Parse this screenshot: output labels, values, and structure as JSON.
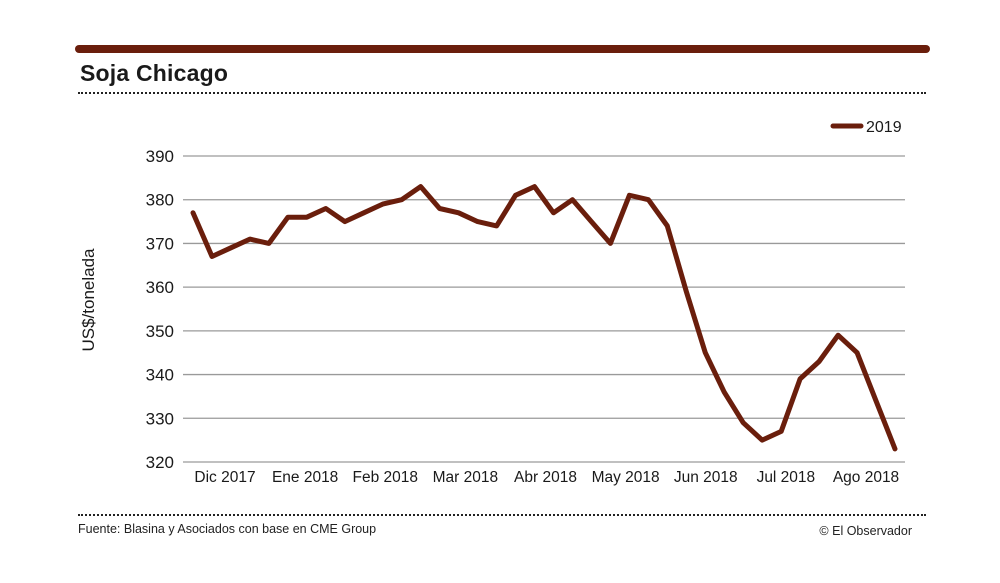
{
  "header": {
    "title": "Soja Chicago"
  },
  "footer": {
    "source": "Fuente: Blasina y Asociados con base en CME Group",
    "credit": "© El Observador"
  },
  "colors": {
    "line": "#6a1e0c",
    "accent_bar": "#6a1e0c",
    "grid": "#9a9a9a"
  },
  "chart_data": {
    "type": "line",
    "title": "Soja Chicago",
    "xlabel": "",
    "ylabel": "US$/tonelada",
    "ylim": [
      320,
      390
    ],
    "yticks": [
      320,
      330,
      340,
      350,
      360,
      370,
      380,
      390
    ],
    "grid": true,
    "legend_position": "top-right",
    "x_tick_labels": [
      "Dic 2017",
      "Ene 2018",
      "Feb 2018",
      "Mar 2018",
      "Abr 2018",
      "May 2018",
      "Jun 2018",
      "Jul 2018",
      "Ago 2018"
    ],
    "series": [
      {
        "name": "2019",
        "values": [
          377,
          367,
          369,
          371,
          370,
          376,
          376,
          378,
          375,
          377,
          379,
          380,
          383,
          378,
          377,
          375,
          374,
          381,
          383,
          377,
          380,
          375,
          370,
          381,
          380,
          374,
          359,
          345,
          336,
          329,
          325,
          327,
          339,
          343,
          349,
          345,
          334,
          323
        ]
      }
    ]
  }
}
